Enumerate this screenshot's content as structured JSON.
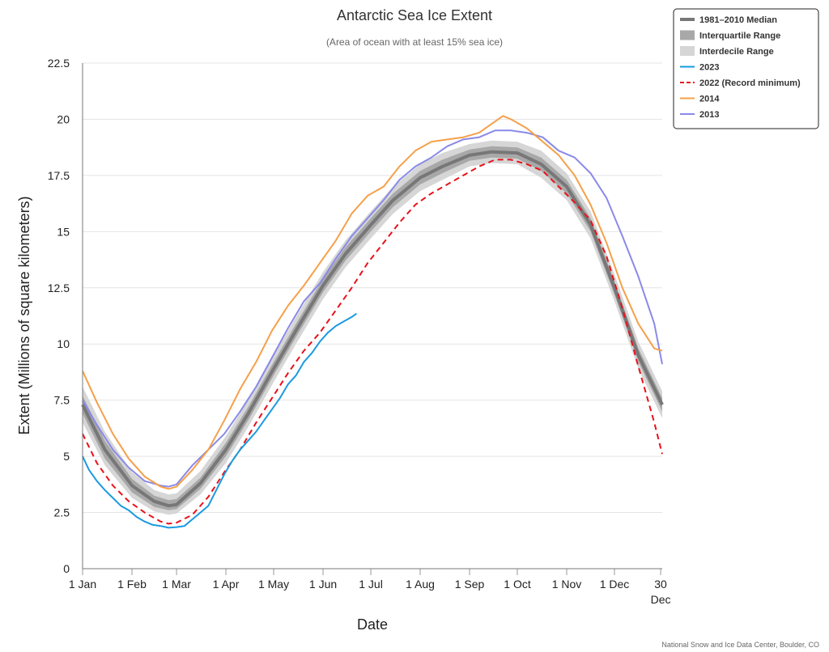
{
  "chart_data": {
    "type": "line",
    "title": "Antarctic Sea Ice Extent",
    "subtitle": "(Area of ocean with at least 15% sea ice)",
    "xlabel": "Date",
    "ylabel": "Extent (Millions of square kilometers)",
    "credit": "National Snow and Ice Data Center, Boulder, CO",
    "ylim": [
      0,
      22.5
    ],
    "xlim": [
      1,
      365
    ],
    "yticks": [
      "0",
      "2.5",
      "5",
      "7.5",
      "10",
      "12.5",
      "15",
      "17.5",
      "20",
      "22.5"
    ],
    "xticks": [
      {
        "day": 1,
        "label": "1 Jan"
      },
      {
        "day": 32,
        "label": "1 Feb"
      },
      {
        "day": 60,
        "label": "1 Mar"
      },
      {
        "day": 91,
        "label": "1 Apr"
      },
      {
        "day": 121,
        "label": "1 May"
      },
      {
        "day": 152,
        "label": "1 Jun"
      },
      {
        "day": 182,
        "label": "1 Jul"
      },
      {
        "day": 213,
        "label": "1 Aug"
      },
      {
        "day": 244,
        "label": "1 Sep"
      },
      {
        "day": 274,
        "label": "1 Oct"
      },
      {
        "day": 305,
        "label": "1 Nov"
      },
      {
        "day": 335,
        "label": "1 Dec"
      },
      {
        "day": 364,
        "label": "30",
        "label2": "Dec"
      }
    ],
    "grid": true,
    "legend_placement": "top-right",
    "median": {
      "name": "1981–2010 Median",
      "color": "#777777",
      "x": [
        1,
        15,
        32,
        46,
        55,
        60,
        75,
        91,
        105,
        121,
        135,
        152,
        166,
        182,
        196,
        213,
        227,
        244,
        258,
        274,
        289,
        305,
        320,
        335,
        350,
        365
      ],
      "y": [
        7.3,
        5.3,
        3.7,
        3.0,
        2.8,
        2.85,
        3.8,
        5.3,
        6.9,
        8.9,
        10.6,
        12.6,
        14.0,
        15.3,
        16.4,
        17.4,
        17.9,
        18.4,
        18.55,
        18.5,
        18.0,
        17.0,
        15.3,
        12.5,
        9.5,
        7.3
      ]
    },
    "interquartile": {
      "name": "Interquartile Range",
      "color": "#a8a8a8",
      "x": [
        1,
        15,
        32,
        46,
        55,
        60,
        75,
        91,
        105,
        121,
        135,
        152,
        166,
        182,
        196,
        213,
        227,
        244,
        258,
        274,
        289,
        305,
        320,
        335,
        350,
        365
      ],
      "lower": [
        6.9,
        4.9,
        3.4,
        2.75,
        2.6,
        2.65,
        3.55,
        5.0,
        6.6,
        8.6,
        10.3,
        12.3,
        13.7,
        15.0,
        16.1,
        17.1,
        17.6,
        18.15,
        18.3,
        18.25,
        17.7,
        16.7,
        15.0,
        12.2,
        9.2,
        7.0
      ],
      "upper": [
        7.7,
        5.7,
        4.0,
        3.25,
        3.05,
        3.1,
        4.05,
        5.6,
        7.2,
        9.2,
        10.9,
        12.9,
        14.3,
        15.6,
        16.7,
        17.7,
        18.2,
        18.65,
        18.8,
        18.75,
        18.3,
        17.3,
        15.6,
        12.8,
        9.8,
        7.6
      ]
    },
    "interdecile": {
      "name": "Interdecile Range",
      "color": "#d6d6d6",
      "x": [
        1,
        15,
        32,
        46,
        55,
        60,
        75,
        91,
        105,
        121,
        135,
        152,
        166,
        182,
        196,
        213,
        227,
        244,
        258,
        274,
        289,
        305,
        320,
        335,
        350,
        365
      ],
      "lower": [
        6.5,
        4.6,
        3.15,
        2.55,
        2.4,
        2.45,
        3.3,
        4.7,
        6.3,
        8.3,
        10.0,
        12.0,
        13.4,
        14.7,
        15.8,
        16.8,
        17.3,
        17.9,
        18.05,
        18.0,
        17.4,
        16.4,
        14.7,
        11.9,
        8.9,
        6.7
      ],
      "upper": [
        8.1,
        6.1,
        4.3,
        3.5,
        3.3,
        3.35,
        4.35,
        5.9,
        7.5,
        9.5,
        11.2,
        13.2,
        14.6,
        15.9,
        17.0,
        18.0,
        18.5,
        18.9,
        19.05,
        19.0,
        18.6,
        17.6,
        15.9,
        13.1,
        10.1,
        7.9
      ]
    },
    "series": [
      {
        "name": "2023",
        "color": "#1a9ae0",
        "dash": "",
        "x": [
          1,
          5,
          10,
          15,
          20,
          25,
          30,
          35,
          40,
          45,
          50,
          55,
          60,
          65,
          70,
          75,
          80,
          85,
          90,
          95,
          100,
          105,
          110,
          115,
          120,
          125,
          130,
          135,
          140,
          145,
          150,
          155,
          160,
          165,
          170,
          173
        ],
        "y": [
          5.0,
          4.4,
          3.9,
          3.5,
          3.15,
          2.8,
          2.6,
          2.3,
          2.1,
          1.95,
          1.9,
          1.82,
          1.85,
          1.9,
          2.2,
          2.5,
          2.8,
          3.5,
          4.2,
          4.8,
          5.3,
          5.7,
          6.1,
          6.6,
          7.1,
          7.6,
          8.2,
          8.6,
          9.2,
          9.6,
          10.1,
          10.5,
          10.8,
          11.0,
          11.2,
          11.35
        ]
      },
      {
        "name": "2022 (Record minimum)",
        "color": "#e8121a",
        "dash": "7,5",
        "x": [
          1,
          10,
          20,
          30,
          40,
          50,
          55,
          60,
          70,
          80,
          90,
          100,
          110,
          120,
          130,
          140,
          150,
          160,
          170,
          180,
          190,
          200,
          210,
          220,
          230,
          240,
          250,
          260,
          270,
          280,
          290,
          300,
          310,
          320,
          330,
          340,
          350,
          360,
          365
        ],
        "y": [
          6.0,
          4.7,
          3.7,
          3.0,
          2.5,
          2.1,
          2.0,
          2.05,
          2.4,
          3.2,
          4.3,
          5.3,
          6.5,
          7.6,
          8.7,
          9.7,
          10.5,
          11.5,
          12.5,
          13.6,
          14.5,
          15.4,
          16.2,
          16.7,
          17.1,
          17.5,
          17.9,
          18.2,
          18.2,
          18.0,
          17.7,
          17.0,
          16.3,
          15.5,
          13.9,
          11.6,
          9.0,
          6.5,
          5.1
        ]
      },
      {
        "name": "2014",
        "color": "#f5a04a",
        "dash": "",
        "x": [
          1,
          10,
          20,
          30,
          40,
          50,
          55,
          60,
          70,
          80,
          90,
          100,
          110,
          120,
          130,
          140,
          150,
          160,
          170,
          180,
          190,
          200,
          210,
          220,
          230,
          240,
          250,
          260,
          265,
          270,
          280,
          290,
          300,
          310,
          320,
          330,
          340,
          350,
          360,
          365
        ],
        "y": [
          8.8,
          7.4,
          6.0,
          4.9,
          4.1,
          3.65,
          3.55,
          3.65,
          4.4,
          5.3,
          6.6,
          8.0,
          9.2,
          10.6,
          11.7,
          12.6,
          13.6,
          14.6,
          15.8,
          16.6,
          17.0,
          17.9,
          18.6,
          19.0,
          19.1,
          19.2,
          19.4,
          19.9,
          20.15,
          20.0,
          19.6,
          19.0,
          18.4,
          17.5,
          16.2,
          14.5,
          12.5,
          10.9,
          9.8,
          9.7
        ]
      },
      {
        "name": "2013",
        "color": "#8a8ae8",
        "dash": "",
        "x": [
          1,
          10,
          20,
          30,
          40,
          50,
          55,
          60,
          70,
          80,
          90,
          100,
          110,
          120,
          130,
          140,
          150,
          160,
          170,
          180,
          190,
          200,
          210,
          220,
          230,
          240,
          250,
          260,
          270,
          280,
          290,
          300,
          310,
          320,
          330,
          340,
          350,
          360,
          365
        ],
        "y": [
          7.5,
          6.4,
          5.3,
          4.5,
          3.9,
          3.7,
          3.65,
          3.75,
          4.6,
          5.3,
          6.0,
          7.0,
          8.1,
          9.4,
          10.7,
          11.9,
          12.7,
          13.8,
          14.8,
          15.6,
          16.4,
          17.3,
          17.9,
          18.3,
          18.8,
          19.1,
          19.2,
          19.5,
          19.5,
          19.4,
          19.2,
          18.6,
          18.3,
          17.6,
          16.5,
          14.8,
          13.0,
          10.9,
          9.1
        ]
      }
    ],
    "legend": [
      {
        "label": "1981–2010 Median",
        "color": "#777777",
        "kind": "thick"
      },
      {
        "label": "Interquartile Range",
        "color": "#a8a8a8",
        "kind": "band"
      },
      {
        "label": "Interdecile Range",
        "color": "#d6d6d6",
        "kind": "band"
      },
      {
        "label": "2023",
        "color": "#1a9ae0",
        "kind": "line"
      },
      {
        "label": "2022 (Record minimum)",
        "color": "#e8121a",
        "kind": "dash"
      },
      {
        "label": "2014",
        "color": "#f5a04a",
        "kind": "line"
      },
      {
        "label": "2013",
        "color": "#8a8ae8",
        "kind": "line"
      }
    ]
  }
}
